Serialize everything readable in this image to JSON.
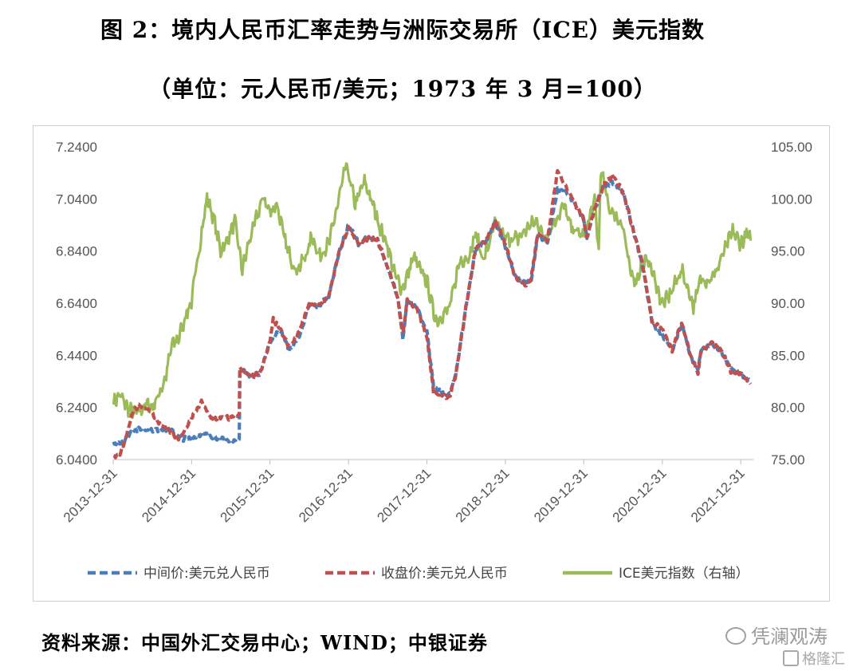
{
  "title": "图 2：境内人民币汇率走势与洲际交易所（ICE）美元指数",
  "subtitle": "（单位：元人民币/美元；1973 年 3 月=100）",
  "source": "资料来源：中国外汇交易中心；WIND；中银证券",
  "watermark": "凭澜观涛",
  "watermark2": "格隆汇",
  "chart_data": {
    "type": "line",
    "x_ticks": [
      "2013-12-31",
      "2014-12-31",
      "2015-12-31",
      "2016-12-31",
      "2017-12-31",
      "2018-12-31",
      "2019-12-31",
      "2020-12-31",
      "2021-12-31"
    ],
    "x_range": [
      "2013-12-31",
      "2022-02-28"
    ],
    "y_left_ticks": [
      "6.0400",
      "6.2400",
      "6.4400",
      "6.6400",
      "6.8400",
      "7.0400",
      "7.2400"
    ],
    "y_left_range": [
      6.04,
      7.24
    ],
    "y_right_ticks": [
      "75.00",
      "80.00",
      "85.00",
      "90.00",
      "95.00",
      "100.00",
      "105.00"
    ],
    "y_right_range": [
      75,
      105
    ],
    "grid": false,
    "legend_position": "bottom",
    "series": [
      {
        "name": "中间价:美元兑人民币",
        "axis": "left",
        "color": "#4a7ebb",
        "style": "dashed",
        "points": [
          [
            "2014-01-02",
            6.1
          ],
          [
            "2014-02-15",
            6.11
          ],
          [
            "2014-03-31",
            6.15
          ],
          [
            "2014-05-15",
            6.16
          ],
          [
            "2014-06-30",
            6.15
          ],
          [
            "2014-08-15",
            6.16
          ],
          [
            "2014-09-30",
            6.15
          ],
          [
            "2014-11-15",
            6.12
          ],
          [
            "2014-12-31",
            6.12
          ],
          [
            "2015-02-15",
            6.14
          ],
          [
            "2015-03-31",
            6.13
          ],
          [
            "2015-05-15",
            6.12
          ],
          [
            "2015-06-30",
            6.11
          ],
          [
            "2015-08-10",
            6.12
          ],
          [
            "2015-08-13",
            6.39
          ],
          [
            "2015-09-30",
            6.36
          ],
          [
            "2015-11-15",
            6.37
          ],
          [
            "2015-12-31",
            6.49
          ],
          [
            "2016-02-15",
            6.54
          ],
          [
            "2016-03-31",
            6.46
          ],
          [
            "2016-05-15",
            6.51
          ],
          [
            "2016-06-30",
            6.63
          ],
          [
            "2016-08-15",
            6.63
          ],
          [
            "2016-09-30",
            6.67
          ],
          [
            "2016-11-15",
            6.83
          ],
          [
            "2016-12-31",
            6.94
          ],
          [
            "2017-02-15",
            6.87
          ],
          [
            "2017-03-31",
            6.89
          ],
          [
            "2017-05-15",
            6.88
          ],
          [
            "2017-06-30",
            6.78
          ],
          [
            "2017-08-15",
            6.67
          ],
          [
            "2017-09-10",
            6.5
          ],
          [
            "2017-09-30",
            6.65
          ],
          [
            "2017-11-15",
            6.62
          ],
          [
            "2017-12-31",
            6.53
          ],
          [
            "2018-01-31",
            6.32
          ],
          [
            "2018-03-31",
            6.29
          ],
          [
            "2018-04-15",
            6.29
          ],
          [
            "2018-05-15",
            6.37
          ],
          [
            "2018-06-30",
            6.62
          ],
          [
            "2018-08-15",
            6.85
          ],
          [
            "2018-09-30",
            6.87
          ],
          [
            "2018-11-15",
            6.95
          ],
          [
            "2018-12-31",
            6.86
          ],
          [
            "2019-02-15",
            6.74
          ],
          [
            "2019-03-31",
            6.72
          ],
          [
            "2019-04-30",
            6.72
          ],
          [
            "2019-05-31",
            6.9
          ],
          [
            "2019-07-15",
            6.87
          ],
          [
            "2019-08-31",
            7.08
          ],
          [
            "2019-09-30",
            7.07
          ],
          [
            "2019-11-15",
            7.03
          ],
          [
            "2019-12-31",
            6.96
          ],
          [
            "2020-01-15",
            6.89
          ],
          [
            "2020-02-15",
            6.99
          ],
          [
            "2020-03-31",
            7.09
          ],
          [
            "2020-05-15",
            7.1
          ],
          [
            "2020-06-30",
            7.07
          ],
          [
            "2020-08-15",
            6.93
          ],
          [
            "2020-09-30",
            6.78
          ],
          [
            "2020-11-15",
            6.56
          ],
          [
            "2020-12-31",
            6.52
          ],
          [
            "2021-02-15",
            6.46
          ],
          [
            "2021-03-31",
            6.56
          ],
          [
            "2021-05-15",
            6.43
          ],
          [
            "2021-06-15",
            6.39
          ],
          [
            "2021-06-30",
            6.46
          ],
          [
            "2021-08-15",
            6.48
          ],
          [
            "2021-09-30",
            6.46
          ],
          [
            "2021-11-15",
            6.39
          ],
          [
            "2021-12-31",
            6.37
          ],
          [
            "2022-02-15",
            6.34
          ]
        ]
      },
      {
        "name": "收盘价:美元兑人民币",
        "axis": "left",
        "color": "#c0504d",
        "style": "dashed",
        "points": [
          [
            "2014-01-02",
            6.05
          ],
          [
            "2014-01-31",
            6.06
          ],
          [
            "2014-02-28",
            6.12
          ],
          [
            "2014-03-31",
            6.22
          ],
          [
            "2014-04-30",
            6.25
          ],
          [
            "2014-05-31",
            6.24
          ],
          [
            "2014-06-30",
            6.22
          ],
          [
            "2014-07-31",
            6.18
          ],
          [
            "2014-08-31",
            6.16
          ],
          [
            "2014-09-30",
            6.14
          ],
          [
            "2014-10-31",
            6.12
          ],
          [
            "2014-11-30",
            6.15
          ],
          [
            "2014-12-31",
            6.2
          ],
          [
            "2015-02-15",
            6.26
          ],
          [
            "2015-03-31",
            6.2
          ],
          [
            "2015-05-15",
            6.2
          ],
          [
            "2015-06-30",
            6.2
          ],
          [
            "2015-08-10",
            6.21
          ],
          [
            "2015-08-13",
            6.39
          ],
          [
            "2015-09-30",
            6.36
          ],
          [
            "2015-11-15",
            6.37
          ],
          [
            "2015-12-31",
            6.49
          ],
          [
            "2016-01-15",
            6.58
          ],
          [
            "2016-02-15",
            6.54
          ],
          [
            "2016-03-31",
            6.47
          ],
          [
            "2016-05-15",
            6.53
          ],
          [
            "2016-06-30",
            6.64
          ],
          [
            "2016-08-15",
            6.63
          ],
          [
            "2016-09-30",
            6.67
          ],
          [
            "2016-11-15",
            6.83
          ],
          [
            "2016-12-31",
            6.93
          ],
          [
            "2017-02-15",
            6.87
          ],
          [
            "2017-03-31",
            6.89
          ],
          [
            "2017-05-15",
            6.88
          ],
          [
            "2017-06-30",
            6.78
          ],
          [
            "2017-08-15",
            6.67
          ],
          [
            "2017-09-10",
            6.52
          ],
          [
            "2017-09-30",
            6.65
          ],
          [
            "2017-11-15",
            6.62
          ],
          [
            "2017-12-31",
            6.51
          ],
          [
            "2018-01-31",
            6.3
          ],
          [
            "2018-03-31",
            6.28
          ],
          [
            "2018-04-15",
            6.28
          ],
          [
            "2018-05-15",
            6.37
          ],
          [
            "2018-06-30",
            6.62
          ],
          [
            "2018-08-15",
            6.85
          ],
          [
            "2018-09-30",
            6.88
          ],
          [
            "2018-11-15",
            6.96
          ],
          [
            "2018-12-31",
            6.87
          ],
          [
            "2019-02-15",
            6.74
          ],
          [
            "2019-03-31",
            6.71
          ],
          [
            "2019-04-30",
            6.73
          ],
          [
            "2019-05-31",
            6.91
          ],
          [
            "2019-07-15",
            6.88
          ],
          [
            "2019-08-31",
            7.15
          ],
          [
            "2019-09-30",
            7.1
          ],
          [
            "2019-11-15",
            7.03
          ],
          [
            "2019-12-31",
            6.96
          ],
          [
            "2020-01-15",
            6.89
          ],
          [
            "2020-02-15",
            6.99
          ],
          [
            "2020-03-31",
            7.09
          ],
          [
            "2020-05-15",
            7.13
          ],
          [
            "2020-06-30",
            7.07
          ],
          [
            "2020-08-15",
            6.93
          ],
          [
            "2020-09-30",
            6.79
          ],
          [
            "2020-11-15",
            6.57
          ],
          [
            "2020-12-31",
            6.54
          ],
          [
            "2021-02-15",
            6.46
          ],
          [
            "2021-03-31",
            6.57
          ],
          [
            "2021-05-15",
            6.43
          ],
          [
            "2021-06-15",
            6.37
          ],
          [
            "2021-06-30",
            6.46
          ],
          [
            "2021-08-15",
            6.49
          ],
          [
            "2021-09-30",
            6.46
          ],
          [
            "2021-11-15",
            6.38
          ],
          [
            "2021-12-31",
            6.37
          ],
          [
            "2022-02-15",
            6.33
          ]
        ]
      },
      {
        "name": "ICE美元指数（右轴）",
        "axis": "right",
        "color": "#9bbb59",
        "style": "solid",
        "points": [
          [
            "2014-01-02",
            80.5
          ],
          [
            "2014-01-31",
            81.2
          ],
          [
            "2014-03-15",
            79.7
          ],
          [
            "2014-04-30",
            79.5
          ],
          [
            "2014-05-31",
            80.3
          ],
          [
            "2014-06-30",
            80.0
          ],
          [
            "2014-07-31",
            81.2
          ],
          [
            "2014-08-31",
            82.8
          ],
          [
            "2014-09-30",
            86.0
          ],
          [
            "2014-10-31",
            86.6
          ],
          [
            "2014-11-30",
            88.6
          ],
          [
            "2014-12-31",
            90.2
          ],
          [
            "2015-01-31",
            94.7
          ],
          [
            "2015-03-13",
            100.1
          ],
          [
            "2015-04-15",
            98.0
          ],
          [
            "2015-05-15",
            95.0
          ],
          [
            "2015-06-15",
            96.0
          ],
          [
            "2015-07-20",
            97.9
          ],
          [
            "2015-08-24",
            93.2
          ],
          [
            "2015-09-30",
            96.3
          ],
          [
            "2015-11-30",
            100.2
          ],
          [
            "2015-12-31",
            98.7
          ],
          [
            "2016-01-31",
            99.6
          ],
          [
            "2016-03-15",
            95.5
          ],
          [
            "2016-04-30",
            93.1
          ],
          [
            "2016-06-15",
            94.5
          ],
          [
            "2016-07-15",
            96.5
          ],
          [
            "2016-08-15",
            94.5
          ],
          [
            "2016-09-30",
            95.7
          ],
          [
            "2016-10-31",
            98.5
          ],
          [
            "2016-12-20",
            103.3
          ],
          [
            "2017-01-31",
            99.5
          ],
          [
            "2017-03-15",
            101.7
          ],
          [
            "2017-04-30",
            99.0
          ],
          [
            "2017-05-31",
            97.0
          ],
          [
            "2017-06-30",
            95.6
          ],
          [
            "2017-07-31",
            92.9
          ],
          [
            "2017-09-08",
            91.3
          ],
          [
            "2017-10-31",
            94.5
          ],
          [
            "2017-11-30",
            93.1
          ],
          [
            "2017-12-31",
            92.1
          ],
          [
            "2018-01-31",
            89.1
          ],
          [
            "2018-02-15",
            88.3
          ],
          [
            "2018-04-15",
            89.5
          ],
          [
            "2018-05-31",
            94.0
          ],
          [
            "2018-07-15",
            94.5
          ],
          [
            "2018-08-15",
            96.7
          ],
          [
            "2018-09-20",
            94.1
          ],
          [
            "2018-11-12",
            97.5
          ],
          [
            "2018-12-31",
            96.2
          ],
          [
            "2019-02-28",
            96.2
          ],
          [
            "2019-04-30",
            97.6
          ],
          [
            "2019-05-31",
            97.8
          ],
          [
            "2019-06-30",
            96.1
          ],
          [
            "2019-09-30",
            99.4
          ],
          [
            "2019-10-31",
            97.3
          ],
          [
            "2019-12-31",
            96.4
          ],
          [
            "2020-02-20",
            99.8
          ],
          [
            "2020-03-10",
            94.9
          ],
          [
            "2020-03-19",
            102.8
          ],
          [
            "2020-04-30",
            99.0
          ],
          [
            "2020-05-31",
            98.3
          ],
          [
            "2020-06-30",
            97.4
          ],
          [
            "2020-07-31",
            93.3
          ],
          [
            "2020-08-31",
            92.1
          ],
          [
            "2020-09-30",
            93.9
          ],
          [
            "2020-10-31",
            94.0
          ],
          [
            "2020-11-30",
            91.9
          ],
          [
            "2020-12-31",
            89.9
          ],
          [
            "2021-01-31",
            90.6
          ],
          [
            "2021-03-31",
            93.2
          ],
          [
            "2021-05-25",
            89.7
          ],
          [
            "2021-06-30",
            92.4
          ],
          [
            "2021-07-31",
            92.2
          ],
          [
            "2021-08-31",
            92.7
          ],
          [
            "2021-09-30",
            94.2
          ],
          [
            "2021-11-24",
            96.9
          ],
          [
            "2021-12-31",
            95.7
          ],
          [
            "2022-01-31",
            96.7
          ],
          [
            "2022-02-15",
            96.0
          ]
        ]
      }
    ]
  }
}
